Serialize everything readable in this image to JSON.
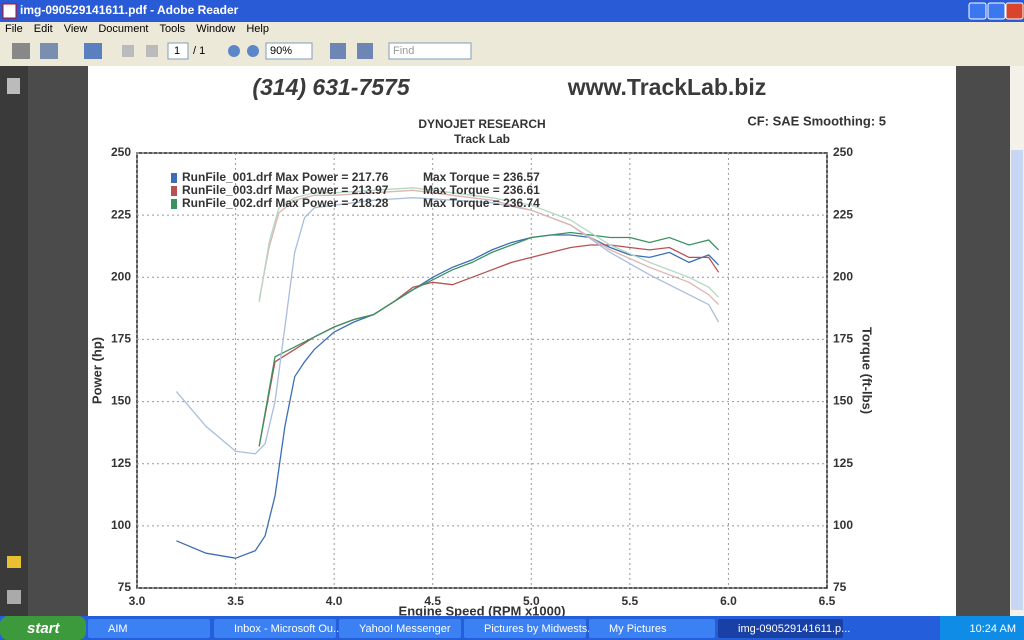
{
  "window": {
    "title": "img-090529141611.pdf - Adobe Reader",
    "menu": [
      "File",
      "Edit",
      "View",
      "Document",
      "Tools",
      "Window",
      "Help"
    ],
    "toolbar": {
      "page": "1",
      "page_count": "/ 1",
      "zoom": "90%",
      "find": "Find"
    }
  },
  "document": {
    "phone": "(314) 631-7575",
    "website": "www.TrackLab.biz",
    "heading": "DYNOJET RESEARCH",
    "subheading": "Track Lab",
    "settings": "CF: SAE  Smoothing: 5"
  },
  "chart_data": {
    "type": "line",
    "x_label": "Engine Speed (RPM x1000)",
    "y_label": "Power (hp)",
    "y2_label": "Torque (ft-lbs)",
    "xlim": [
      3.0,
      6.5
    ],
    "xticks": [
      {
        "value": 3,
        "label": "3.0"
      },
      {
        "value": 3.5,
        "label": "3.5"
      },
      {
        "value": 4,
        "label": "4.0"
      },
      {
        "value": 4.5,
        "label": "4.5"
      },
      {
        "value": 5,
        "label": "5.0"
      },
      {
        "value": 5.5,
        "label": "5.5"
      },
      {
        "value": 6,
        "label": "6.0"
      },
      {
        "value": 6.5,
        "label": "6.5"
      }
    ],
    "ylim": [
      75,
      250
    ],
    "yticks": [
      75,
      100,
      125,
      150,
      175,
      200,
      225,
      250
    ],
    "y2lim": [
      75,
      250
    ],
    "y2ticks": [
      75,
      100,
      125,
      150,
      175,
      200,
      225,
      250
    ],
    "grid": true,
    "series": [
      {
        "name": "RunFile_001.drf Max Power = 217.76",
        "color": "#3d6eb4",
        "x": [
          3.2,
          3.35,
          3.5,
          3.6,
          3.65,
          3.7,
          3.75,
          3.8,
          3.85,
          3.9,
          4.0,
          4.1,
          4.2,
          4.3,
          4.4,
          4.5,
          4.6,
          4.7,
          4.8,
          4.9,
          5.0,
          5.1,
          5.2,
          5.3,
          5.4,
          5.5,
          5.6,
          5.7,
          5.8,
          5.9,
          5.95
        ],
        "values": [
          94,
          89,
          87,
          90,
          96,
          112,
          140,
          160,
          166,
          171,
          178,
          182,
          185,
          190,
          195,
          200,
          204,
          207,
          211,
          214,
          216,
          217,
          217,
          216,
          212,
          209,
          208,
          210,
          206,
          209,
          205
        ]
      },
      {
        "name": "RunFile_003.drf Max Power = 213.97",
        "color": "#b65252",
        "x": [
          3.62,
          3.7,
          3.8,
          3.9,
          4.0,
          4.1,
          4.2,
          4.3,
          4.4,
          4.5,
          4.6,
          4.7,
          4.8,
          4.9,
          5.0,
          5.1,
          5.2,
          5.3,
          5.4,
          5.5,
          5.6,
          5.7,
          5.8,
          5.9,
          5.95
        ],
        "values": [
          132,
          166,
          171,
          176,
          180,
          183,
          185,
          190,
          196,
          198,
          197,
          200,
          203,
          206,
          208,
          210,
          212,
          213,
          213,
          212,
          211,
          212,
          208,
          208,
          202
        ]
      },
      {
        "name": "RunFile_002.drf Max Power = 218.28",
        "color": "#3a9262",
        "x": [
          3.62,
          3.7,
          3.8,
          3.9,
          4.0,
          4.1,
          4.2,
          4.3,
          4.4,
          4.5,
          4.6,
          4.7,
          4.8,
          4.9,
          5.0,
          5.1,
          5.2,
          5.3,
          5.4,
          5.5,
          5.6,
          5.7,
          5.8,
          5.9,
          5.95
        ],
        "values": [
          132,
          168,
          172,
          176,
          180,
          183,
          185,
          190,
          195,
          199,
          203,
          206,
          210,
          213,
          216,
          217,
          218,
          217,
          216,
          216,
          214,
          216,
          213,
          215,
          211
        ]
      },
      {
        "name": "Max Torque = 236.57",
        "color": "#a9bedc",
        "axis": "y2",
        "x": [
          3.2,
          3.35,
          3.5,
          3.6,
          3.65,
          3.7,
          3.75,
          3.8,
          3.85,
          3.9,
          4.0,
          4.2,
          4.4,
          4.6,
          4.8,
          5.0,
          5.2,
          5.4,
          5.6,
          5.8,
          5.9,
          5.95
        ],
        "values": [
          154,
          140,
          130,
          129,
          133,
          150,
          180,
          210,
          224,
          228,
          229,
          231,
          232,
          231,
          230,
          227,
          221,
          210,
          201,
          193,
          189,
          182
        ]
      },
      {
        "name": "Max Torque = 236.61",
        "color": "#ddb4b4",
        "axis": "y2",
        "x": [
          3.62,
          3.67,
          3.72,
          3.8,
          3.9,
          4.0,
          4.2,
          4.4,
          4.6,
          4.8,
          5.0,
          5.2,
          5.4,
          5.6,
          5.8,
          5.9,
          5.95
        ],
        "values": [
          191,
          212,
          226,
          231,
          233,
          233,
          234,
          235,
          233,
          231,
          227,
          221,
          211,
          204,
          198,
          193,
          189
        ]
      },
      {
        "name": "Max Torque = 236.74",
        "color": "#b4d8c2",
        "axis": "y2",
        "x": [
          3.62,
          3.67,
          3.72,
          3.8,
          3.9,
          4.0,
          4.2,
          4.4,
          4.6,
          4.8,
          5.0,
          5.2,
          5.4,
          5.6,
          5.8,
          5.9,
          5.95
        ],
        "values": [
          190,
          214,
          228,
          232,
          234,
          234,
          235,
          236,
          234,
          232,
          229,
          223,
          213,
          206,
          200,
          196,
          192
        ]
      }
    ]
  },
  "taskbar": {
    "start": "start",
    "items": [
      "AIM",
      "Inbox - Microsoft Ou...",
      "Yahoo! Messenger",
      "Pictures by Midwests...",
      "My Pictures",
      "img-090529141611.p..."
    ],
    "clock": "10:24 AM"
  }
}
